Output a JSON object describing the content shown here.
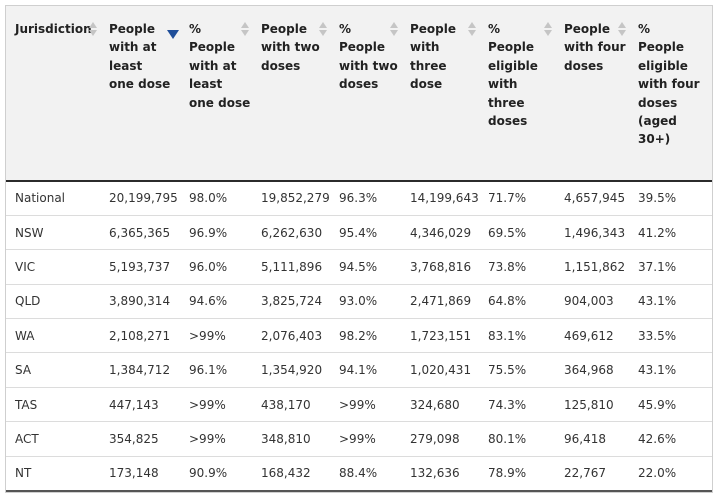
{
  "table": {
    "headers": [
      "Jurisdiction",
      "People with at least one dose",
      "% People with at least one dose",
      "People with two doses",
      "% People with two doses",
      "People with three dose",
      "% People eligible with three doses",
      "People with four doses",
      "% People eligible with four doses (aged 30+)"
    ],
    "rows": [
      [
        "National",
        "20,199,795",
        "98.0%",
        "19,852,279",
        "96.3%",
        "14,199,643",
        "71.7%",
        "4,657,945",
        "39.5%"
      ],
      [
        "NSW",
        "6,365,365",
        "96.9%",
        "6,262,630",
        "95.4%",
        "4,346,029",
        "69.5%",
        "1,496,343",
        "41.2%"
      ],
      [
        "VIC",
        "5,193,737",
        "96.0%",
        "5,111,896",
        "94.5%",
        "3,768,816",
        "73.8%",
        "1,151,862",
        "37.1%"
      ],
      [
        "QLD",
        "3,890,314",
        "94.6%",
        "3,825,724",
        "93.0%",
        "2,471,869",
        "64.8%",
        "904,003",
        "43.1%"
      ],
      [
        "WA",
        "2,108,271",
        ">99%",
        "2,076,403",
        "98.2%",
        "1,723,151",
        "83.1%",
        "469,612",
        "33.5%"
      ],
      [
        "SA",
        "1,384,712",
        "96.1%",
        "1,354,920",
        "94.1%",
        "1,020,431",
        "75.5%",
        "364,968",
        "43.1%"
      ],
      [
        "TAS",
        "447,143",
        ">99%",
        "438,170",
        ">99%",
        "324,680",
        "74.3%",
        "125,810",
        "45.9%"
      ],
      [
        "ACT",
        "354,825",
        ">99%",
        "348,810",
        ">99%",
        "279,098",
        "80.1%",
        "96,418",
        "42.6%"
      ],
      [
        "NT",
        "173,148",
        "90.9%",
        "168,432",
        "88.4%",
        "132,636",
        "78.9%",
        "22,767",
        "22.0%"
      ]
    ]
  }
}
